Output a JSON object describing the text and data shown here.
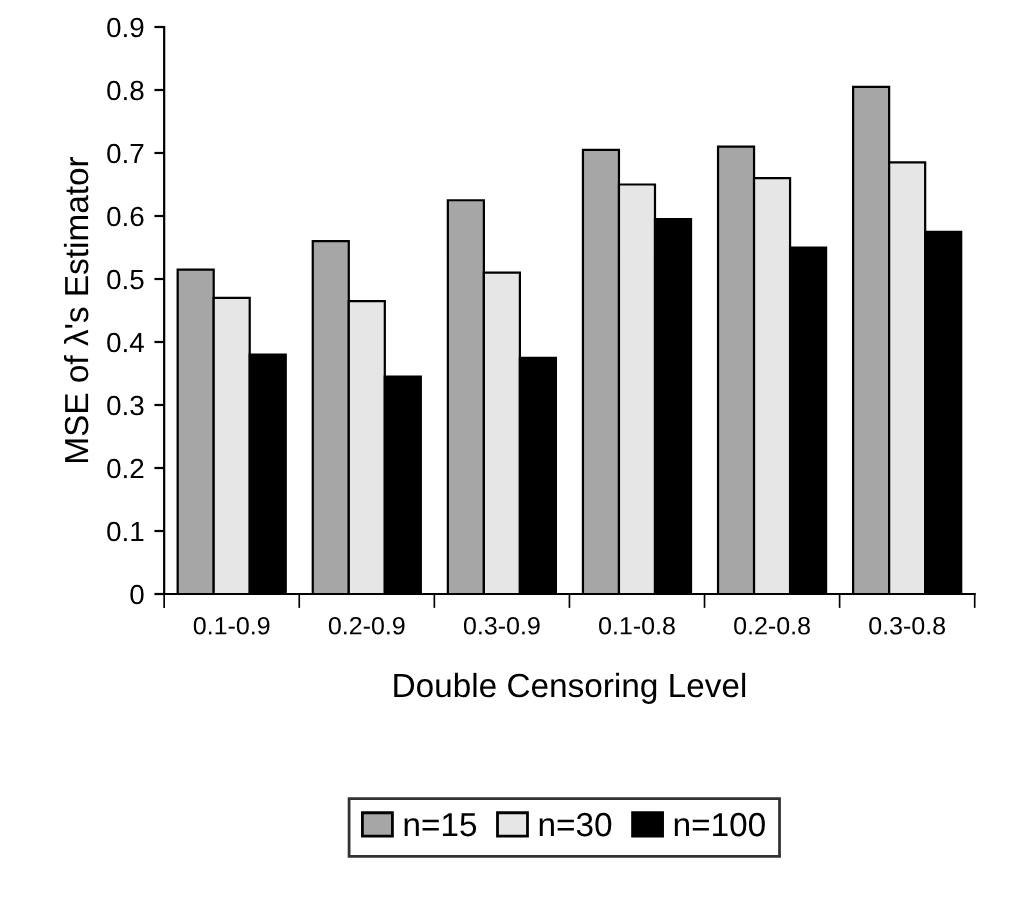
{
  "chart_data": {
    "type": "bar",
    "xlabel": "Double Censoring Level",
    "ylabel": "MSE of λ's Estimator",
    "categories": [
      "0.1-0.9",
      "0.2-0.9",
      "0.3-0.9",
      "0.1-0.8",
      "0.2-0.8",
      "0.3-0.8"
    ],
    "series": [
      {
        "name": "n=15",
        "color": "#a6a6a6",
        "values": [
          0.515,
          0.56,
          0.625,
          0.705,
          0.71,
          0.805
        ]
      },
      {
        "name": "n=30",
        "color": "#e6e6e6",
        "values": [
          0.47,
          0.465,
          0.51,
          0.65,
          0.66,
          0.685
        ]
      },
      {
        "name": "n=100",
        "color": "#000000",
        "values": [
          0.38,
          0.345,
          0.375,
          0.595,
          0.55,
          0.575
        ]
      }
    ],
    "ylim": [
      0,
      0.9
    ],
    "yticks": [
      0,
      0.1,
      0.2,
      0.3,
      0.4,
      0.5,
      0.6,
      0.7,
      0.8,
      0.9
    ],
    "grid": false,
    "legend": "bottom"
  }
}
